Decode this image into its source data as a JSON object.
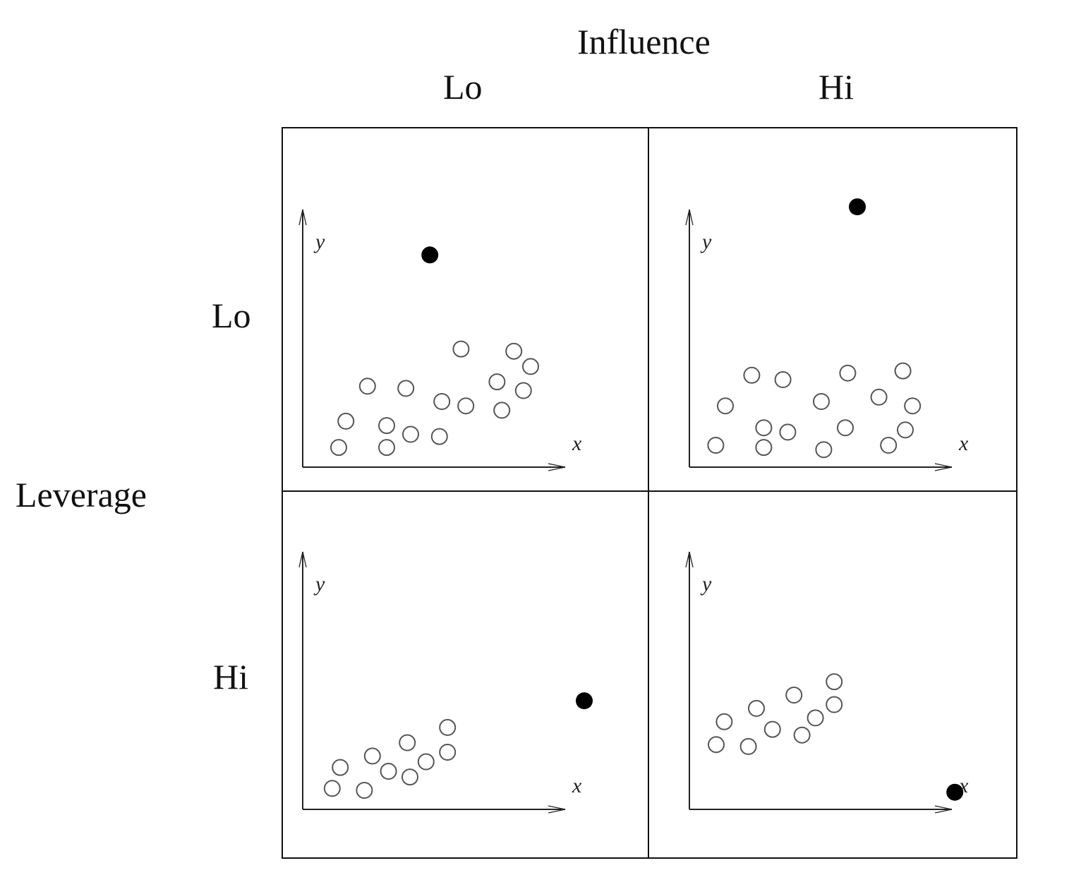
{
  "column_axis": {
    "title": "Influence",
    "levels": [
      "Lo",
      "Hi"
    ]
  },
  "row_axis": {
    "title": "Leverage",
    "levels": [
      "Lo",
      "Hi"
    ]
  },
  "panel_axes": {
    "x_label": "x",
    "y_label": "y"
  },
  "colors": {
    "line": "#111111",
    "axis": "#222222",
    "outlier_fill": "#000000",
    "point_stroke": "#555555"
  },
  "panels": [
    {
      "leverage": "Lo",
      "influence": "Lo",
      "points": [
        {
          "x": 1.5,
          "y": 0.9
        },
        {
          "x": 3.5,
          "y": 0.9
        },
        {
          "x": 1.8,
          "y": 2.1
        },
        {
          "x": 3.5,
          "y": 1.9
        },
        {
          "x": 4.5,
          "y": 1.5
        },
        {
          "x": 5.7,
          "y": 1.4
        },
        {
          "x": 2.7,
          "y": 3.7
        },
        {
          "x": 4.3,
          "y": 3.6
        },
        {
          "x": 5.8,
          "y": 3.0
        },
        {
          "x": 6.8,
          "y": 2.8
        },
        {
          "x": 8.3,
          "y": 2.6
        },
        {
          "x": 6.6,
          "y": 5.4
        },
        {
          "x": 8.1,
          "y": 3.9
        },
        {
          "x": 8.8,
          "y": 5.3
        },
        {
          "x": 9.2,
          "y": 3.5
        },
        {
          "x": 9.5,
          "y": 4.6
        }
      ],
      "outlier": {
        "x": 5.3,
        "y": 9.7
      }
    },
    {
      "leverage": "Lo",
      "influence": "Hi",
      "points": [
        {
          "x": 1.1,
          "y": 1.0
        },
        {
          "x": 3.1,
          "y": 0.9
        },
        {
          "x": 5.6,
          "y": 0.8
        },
        {
          "x": 8.3,
          "y": 1.0
        },
        {
          "x": 3.1,
          "y": 1.8
        },
        {
          "x": 4.1,
          "y": 1.6
        },
        {
          "x": 6.5,
          "y": 1.8
        },
        {
          "x": 9.0,
          "y": 1.7
        },
        {
          "x": 1.5,
          "y": 2.8
        },
        {
          "x": 5.5,
          "y": 3.0
        },
        {
          "x": 7.9,
          "y": 3.2
        },
        {
          "x": 9.3,
          "y": 2.8
        },
        {
          "x": 2.6,
          "y": 4.2
        },
        {
          "x": 3.9,
          "y": 4.0
        },
        {
          "x": 6.6,
          "y": 4.3
        },
        {
          "x": 8.9,
          "y": 4.4
        }
      ],
      "outlier": {
        "x": 7.0,
        "y": 11.9
      }
    },
    {
      "leverage": "Hi",
      "influence": "Lo",
      "points": [
        {
          "x": 1.1,
          "y": 1.1
        },
        {
          "x": 2.3,
          "y": 1.0
        },
        {
          "x": 1.4,
          "y": 2.2
        },
        {
          "x": 2.6,
          "y": 2.8
        },
        {
          "x": 3.2,
          "y": 2.0
        },
        {
          "x": 4.0,
          "y": 1.7
        },
        {
          "x": 3.9,
          "y": 3.5
        },
        {
          "x": 4.6,
          "y": 2.5
        },
        {
          "x": 5.4,
          "y": 3.0
        },
        {
          "x": 5.4,
          "y": 4.3
        }
      ],
      "outlier": {
        "x": 10.5,
        "y": 5.7
      }
    },
    {
      "leverage": "Hi",
      "influence": "Hi",
      "points": [
        {
          "x": 1.0,
          "y": 3.4
        },
        {
          "x": 2.2,
          "y": 3.3
        },
        {
          "x": 1.3,
          "y": 4.6
        },
        {
          "x": 2.5,
          "y": 5.3
        },
        {
          "x": 3.1,
          "y": 4.2
        },
        {
          "x": 3.9,
          "y": 6.0
        },
        {
          "x": 4.2,
          "y": 3.9
        },
        {
          "x": 4.7,
          "y": 4.8
        },
        {
          "x": 5.4,
          "y": 5.5
        },
        {
          "x": 5.4,
          "y": 6.7
        }
      ],
      "outlier": {
        "x": 9.9,
        "y": 0.9
      }
    }
  ]
}
